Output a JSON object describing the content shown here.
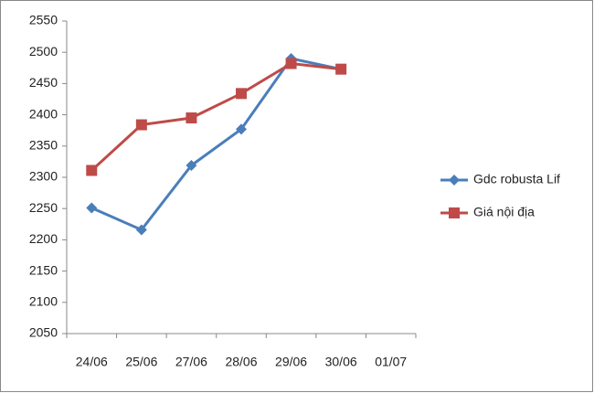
{
  "chart_data": {
    "type": "line",
    "categories": [
      "24/06",
      "25/06",
      "27/06",
      "28/06",
      "29/06",
      "30/06",
      "01/07"
    ],
    "series": [
      {
        "name": "Gdc robusta Lif",
        "color": "#4a7ebb",
        "marker": "diamond",
        "values": [
          2251,
          2216,
          2319,
          2377,
          2490,
          2473,
          null
        ]
      },
      {
        "name": "Giá nội địa",
        "color": "#be4b48",
        "marker": "square",
        "values": [
          2311,
          2384,
          2395,
          2434,
          2482,
          2473,
          null
        ]
      }
    ],
    "ylim": [
      2050,
      2550
    ],
    "yticks": [
      2050,
      2100,
      2150,
      2200,
      2250,
      2300,
      2350,
      2400,
      2450,
      2500,
      2550
    ],
    "grid": false,
    "legend": "right"
  }
}
